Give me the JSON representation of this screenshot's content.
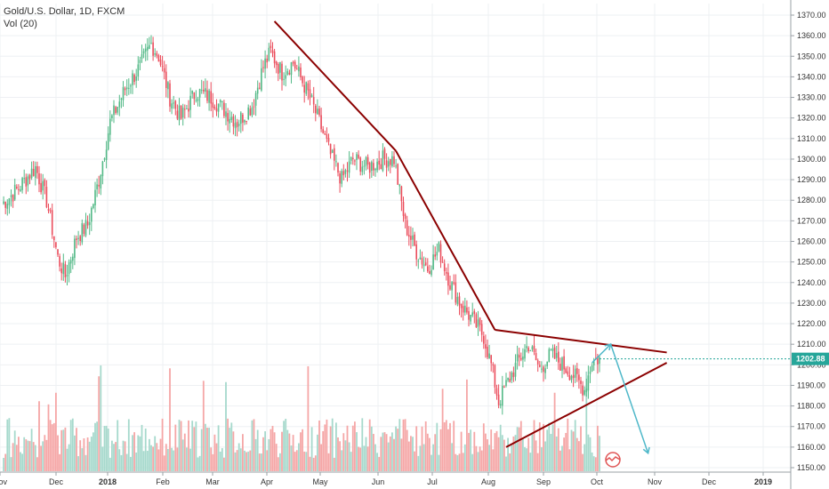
{
  "legend": {
    "symbol_line": "Gold/U.S. Dollar, 1D, FXCM",
    "volume_line": "Vol (20)"
  },
  "colors": {
    "up": "#53b987",
    "down": "#eb4d5c",
    "vol_up": "#a6d9cc",
    "vol_down": "#f5a6a6",
    "trendline": "#8b0000",
    "arrow": "#4fb8c9",
    "price_tag": "#26a69a",
    "grid": "#eef0f3"
  },
  "price_tag": "1202.88",
  "chart_data": {
    "type": "candlestick",
    "title": "Gold/U.S. Dollar, 1D, FXCM",
    "indicator": "Vol (20)",
    "y_ticks": [
      "1150.00",
      "1160.00",
      "1170.00",
      "1180.00",
      "1190.00",
      "1200.00",
      "1210.00",
      "1220.00",
      "1230.00",
      "1240.00",
      "1250.00",
      "1260.00",
      "1270.00",
      "1280.00",
      "1290.00",
      "1300.00",
      "1310.00",
      "1320.00",
      "1330.00",
      "1340.00",
      "1350.00",
      "1360.00",
      "1370.00"
    ],
    "ylim": [
      1148,
      1373
    ],
    "x_ticks": [
      "Nov",
      "Dec",
      "2018",
      "Feb",
      "Mar",
      "Apr",
      "May",
      "Jun",
      "Jul",
      "Aug",
      "Sep",
      "Oct",
      "Nov",
      "Dec",
      "2019"
    ],
    "last_price": 1202.88,
    "price_path": [
      [
        0,
        1278
      ],
      [
        8,
        1285
      ],
      [
        18,
        1296
      ],
      [
        24,
        1280
      ],
      [
        30,
        1252
      ],
      [
        34,
        1243
      ],
      [
        40,
        1262
      ],
      [
        46,
        1268
      ],
      [
        52,
        1290
      ],
      [
        58,
        1318
      ],
      [
        66,
        1334
      ],
      [
        74,
        1345
      ],
      [
        80,
        1356
      ],
      [
        84,
        1350
      ],
      [
        90,
        1330
      ],
      [
        96,
        1320
      ],
      [
        104,
        1333
      ],
      [
        112,
        1330
      ],
      [
        118,
        1325
      ],
      [
        126,
        1318
      ],
      [
        134,
        1326
      ],
      [
        140,
        1345
      ],
      [
        144,
        1352
      ],
      [
        150,
        1342
      ],
      [
        156,
        1347
      ],
      [
        164,
        1332
      ],
      [
        170,
        1318
      ],
      [
        176,
        1302
      ],
      [
        182,
        1290
      ],
      [
        188,
        1300
      ],
      [
        196,
        1296
      ],
      [
        204,
        1300
      ],
      [
        210,
        1300
      ],
      [
        216,
        1268
      ],
      [
        222,
        1255
      ],
      [
        228,
        1247
      ],
      [
        234,
        1256
      ],
      [
        240,
        1240
      ],
      [
        246,
        1229
      ],
      [
        252,
        1222
      ],
      [
        258,
        1214
      ],
      [
        262,
        1200
      ],
      [
        266,
        1182
      ],
      [
        270,
        1190
      ],
      [
        276,
        1201
      ],
      [
        282,
        1210
      ],
      [
        288,
        1198
      ],
      [
        294,
        1205
      ],
      [
        300,
        1200
      ],
      [
        306,
        1195
      ],
      [
        312,
        1188
      ],
      [
        316,
        1202
      ],
      [
        320,
        1203
      ]
    ],
    "trendlines": [
      {
        "from": [
          146,
          1367
        ],
        "to": [
          211,
          1304
        ]
      },
      {
        "from": [
          211,
          1304
        ],
        "to": [
          264,
          1217
        ]
      },
      {
        "from": [
          264,
          1217
        ],
        "to": [
          356,
          1206
        ]
      },
      {
        "from": [
          270,
          1160
        ],
        "to": [
          356,
          1201
        ]
      }
    ],
    "projection_arrow": [
      [
        316,
        1201
      ],
      [
        326,
        1210
      ],
      [
        346,
        1157
      ]
    ]
  }
}
